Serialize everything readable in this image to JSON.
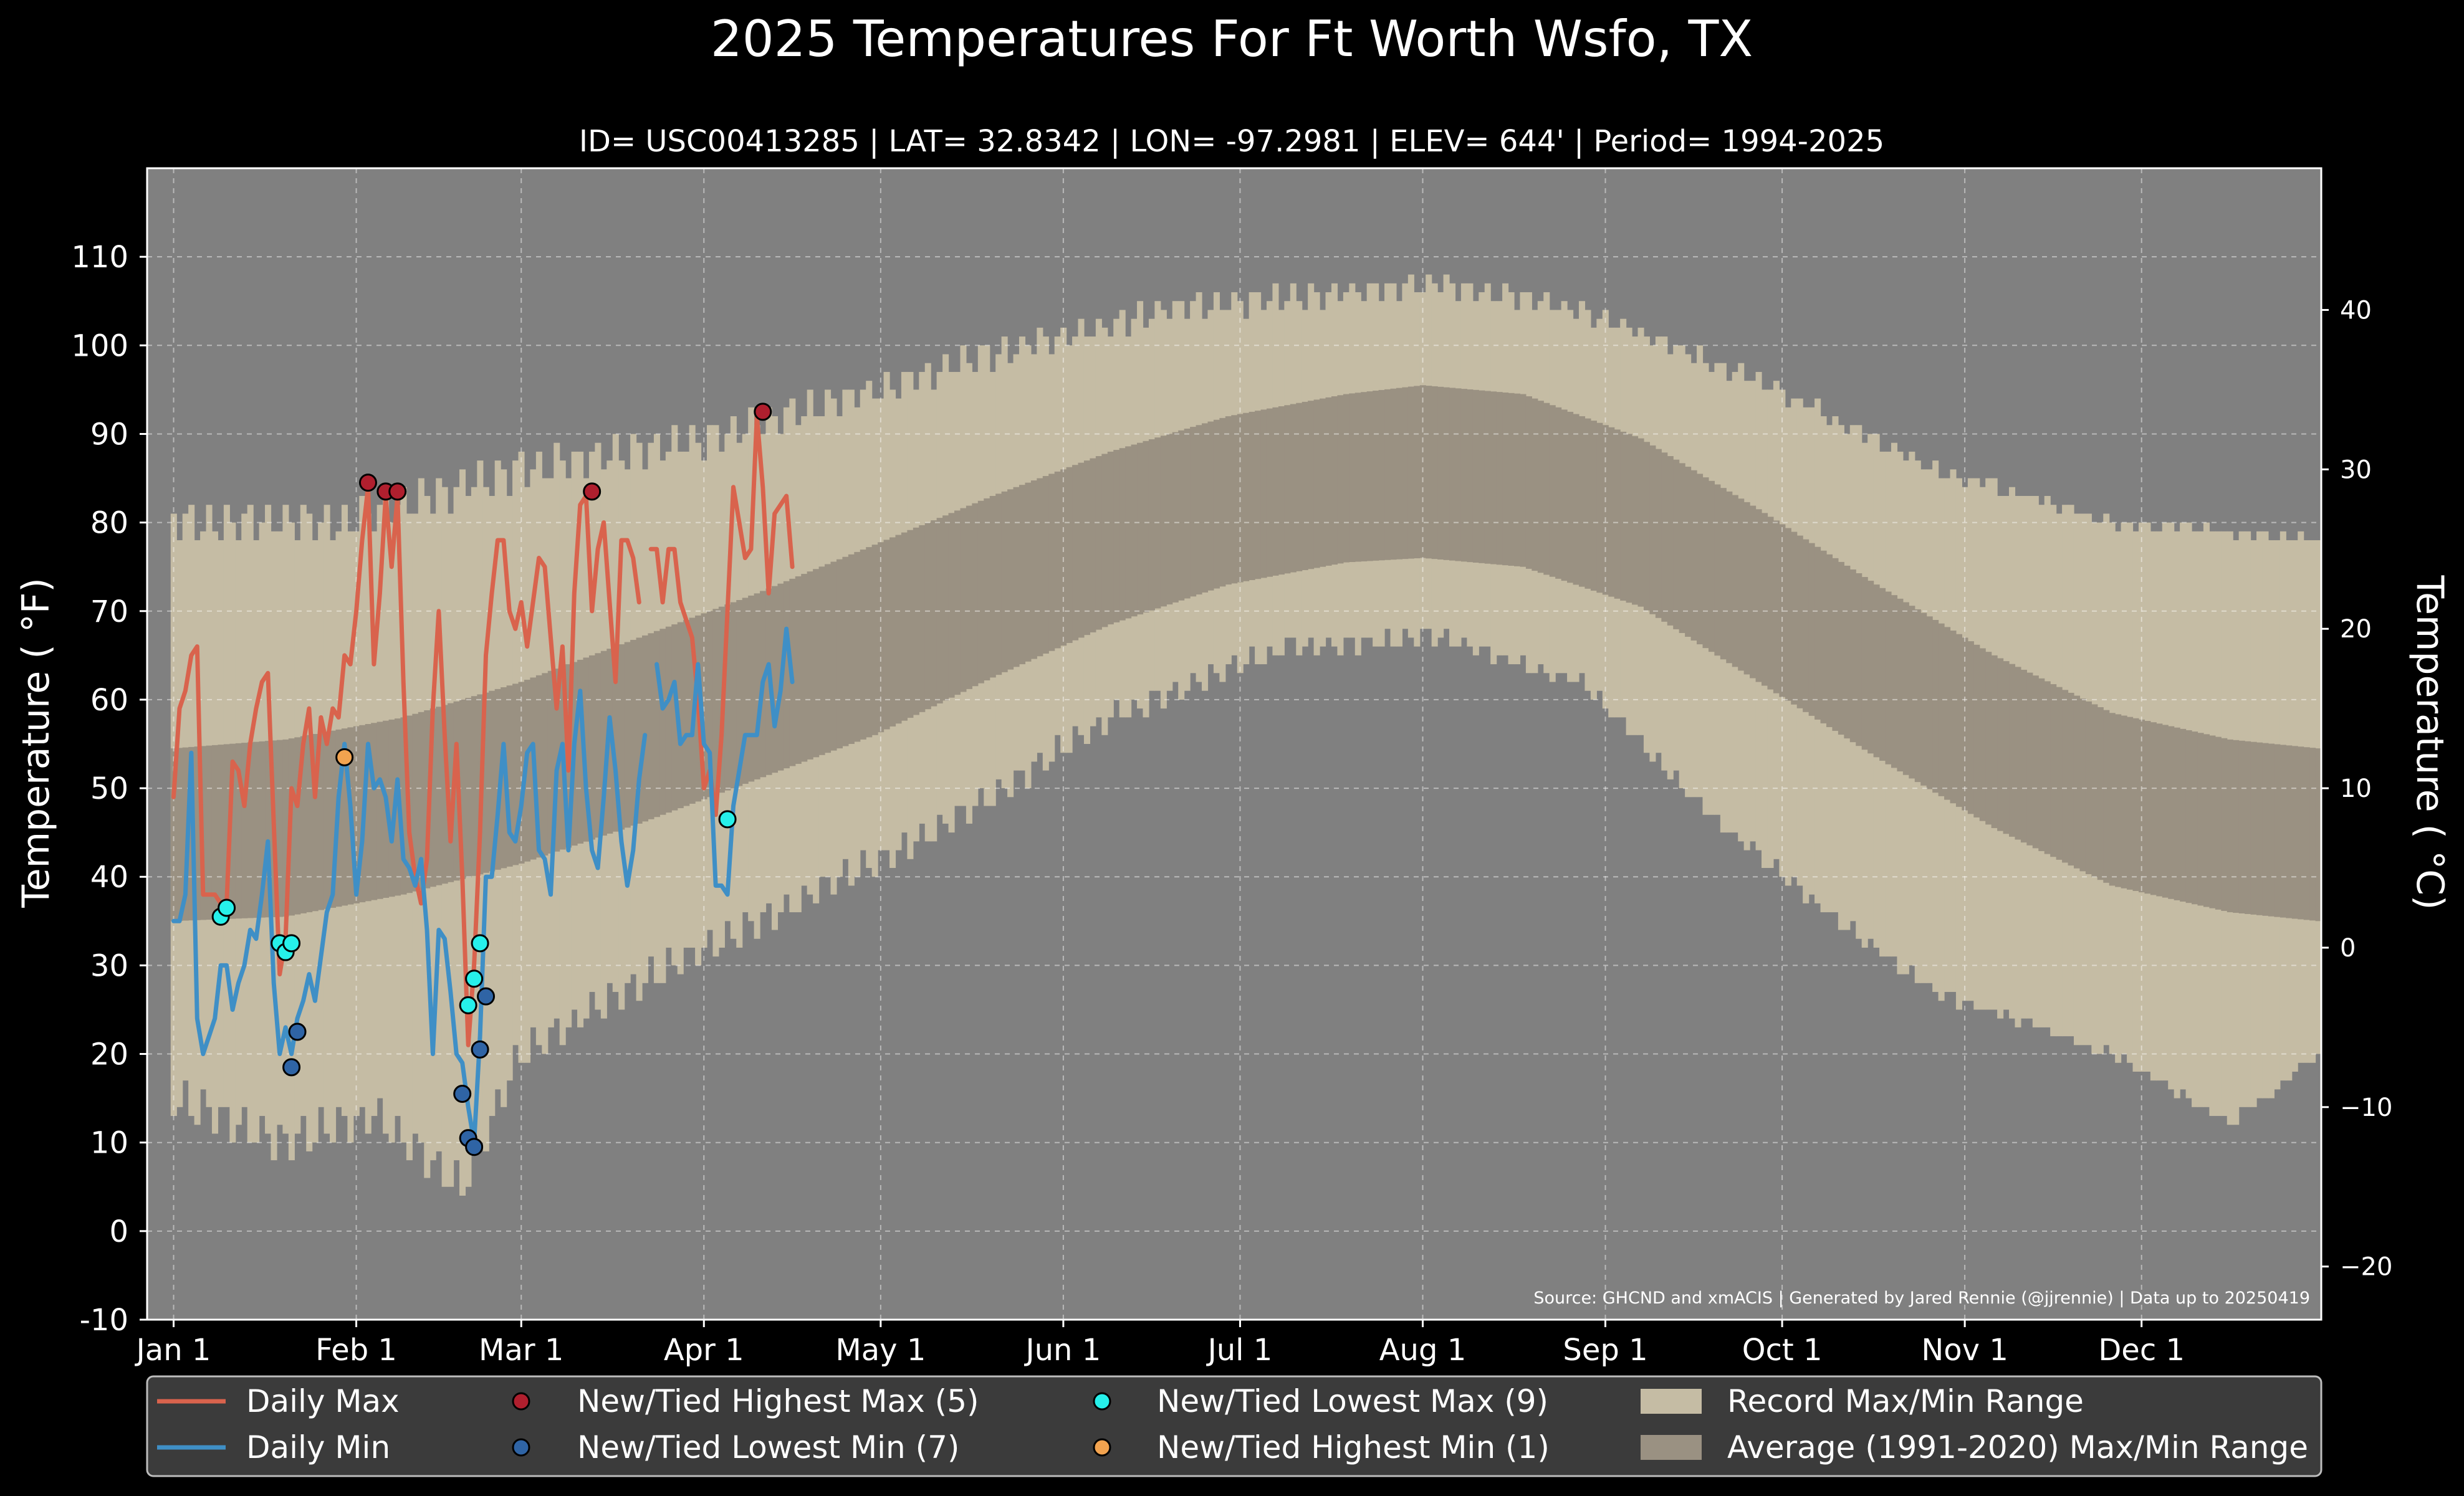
{
  "chart_data": {
    "type": "line",
    "title": "2025 Temperatures For Ft Worth Wsfo, TX",
    "subtitle": "ID= USC00413285 | LAT= 32.8342 | LON= -97.2981 | ELEV= 644' | Period= 1994-2025",
    "ylabel": "Temperature ( °F)",
    "ylabel_right": "Temperature ( °C)",
    "ylim": [
      -10,
      120
    ],
    "ylim_right_celsius": [
      -23.33,
      48.89
    ],
    "y_ticks": [
      "-10",
      "0",
      "10",
      "20",
      "30",
      "40",
      "50",
      "60",
      "70",
      "80",
      "90",
      "100",
      "110"
    ],
    "y_ticks_right": [
      "−20",
      "−10",
      "0",
      "10",
      "20",
      "30",
      "40"
    ],
    "x_ticks": [
      {
        "label": "Jan 1",
        "day": 1
      },
      {
        "label": "Feb 1",
        "day": 32
      },
      {
        "label": "Mar 1",
        "day": 60
      },
      {
        "label": "Apr 1",
        "day": 91
      },
      {
        "label": "May 1",
        "day": 121
      },
      {
        "label": "Jun 1",
        "day": 152
      },
      {
        "label": "Jul 1",
        "day": 182
      },
      {
        "label": "Aug 1",
        "day": 213
      },
      {
        "label": "Sep 1",
        "day": 244
      },
      {
        "label": "Oct 1",
        "day": 274
      },
      {
        "label": "Nov 1",
        "day": 305
      },
      {
        "label": "Dec 1",
        "day": 335
      }
    ],
    "xlim_days": [
      -3.5,
      365.5
    ],
    "grid": true,
    "legend_position": "bottom",
    "source": "Source: GHCND and xmACIS | Generated by Jared Rennie (@jjrennie) | Data up to 20250419",
    "colors": {
      "background": "#000000",
      "plot_bg": "#808080",
      "record_band": "#c5bca4",
      "normal_band": "#9a9182",
      "daily_max": "#d9634d",
      "daily_min": "#3f8fc6",
      "highest_max": "#b01f2e",
      "lowest_min": "#2f64a5",
      "lowest_max": "#26f0ea",
      "highest_min": "#f2a34f"
    },
    "record_max_anchors": {
      "days": [
        1,
        30,
        60,
        90,
        110,
        140,
        170,
        200,
        215,
        240,
        270,
        300,
        330,
        365
      ],
      "values": [
        80,
        80,
        86,
        89,
        93,
        99,
        104,
        106,
        107,
        104,
        96,
        86,
        80,
        78
      ]
    },
    "record_min_anchors": {
      "days": [
        1,
        20,
        35,
        50,
        60,
        80,
        100,
        130,
        160,
        190,
        215,
        240,
        260,
        280,
        300,
        330,
        350,
        365
      ],
      "values": [
        15,
        10,
        13,
        5,
        20,
        28,
        35,
        45,
        58,
        66,
        67,
        62,
        48,
        37,
        27,
        20,
        12,
        20
      ]
    },
    "normal_max_anchors": {
      "days": [
        1,
        20,
        40,
        60,
        80,
        100,
        120,
        140,
        160,
        180,
        200,
        213,
        230,
        250,
        270,
        290,
        310,
        330,
        350,
        365
      ],
      "values": [
        54.5,
        55.5,
        58,
        62,
        67,
        72,
        77.5,
        83,
        88,
        92,
        94.5,
        95.5,
        94.5,
        89.5,
        81.5,
        73,
        65,
        58.5,
        55.5,
        54.5
      ]
    },
    "normal_min_anchors": {
      "days": [
        1,
        20,
        40,
        60,
        80,
        100,
        120,
        140,
        160,
        180,
        200,
        213,
        230,
        250,
        270,
        290,
        310,
        330,
        350,
        365
      ],
      "values": [
        35,
        35.5,
        38,
        41.5,
        46,
        51,
        56,
        62.5,
        68.5,
        73,
        75.5,
        76,
        75,
        70.5,
        62,
        53.5,
        45.5,
        39,
        36,
        35
      ]
    },
    "series": [
      {
        "name": "Daily Max",
        "values": [
          49,
          59,
          61,
          65,
          66,
          38,
          38,
          38,
          37,
          37,
          53,
          52,
          48,
          55,
          59,
          62,
          63,
          46,
          29,
          33,
          50,
          48,
          55,
          59,
          49,
          58,
          55,
          59,
          58,
          65,
          64,
          70,
          78,
          84,
          64,
          72,
          83,
          75,
          83,
          62,
          45,
          40,
          37,
          42,
          59,
          70,
          56,
          44,
          55,
          40,
          21,
          30,
          45,
          65,
          72,
          78,
          78,
          70,
          68,
          71,
          66,
          71,
          76,
          75,
          67,
          59,
          66,
          52,
          72,
          82,
          83,
          70,
          77,
          80,
          71,
          62,
          78,
          78,
          76,
          71,
          null,
          77,
          77,
          71,
          77,
          77,
          71,
          69,
          67,
          60,
          50,
          52,
          47,
          56,
          70,
          84,
          80,
          76,
          77,
          92,
          84,
          72,
          81,
          82,
          83,
          75
        ]
      },
      {
        "name": "Daily Min",
        "values": [
          35,
          35,
          38,
          54,
          24,
          20,
          22,
          24,
          30,
          30,
          25,
          28,
          30,
          34,
          33,
          38,
          44,
          28,
          20,
          23,
          20,
          24,
          26,
          29,
          26,
          31,
          36,
          38,
          49,
          55,
          48,
          38,
          44,
          55,
          50,
          51,
          49,
          44,
          51,
          42,
          41,
          39,
          42,
          34,
          20,
          34,
          33,
          27,
          20,
          19,
          14,
          10,
          22,
          40,
          40,
          47,
          55,
          45,
          44,
          48,
          54,
          55,
          43,
          42,
          38,
          52,
          55,
          43,
          55,
          61,
          50,
          43,
          41,
          49,
          58,
          52,
          44,
          39,
          43,
          51,
          56,
          null,
          64,
          59,
          60,
          62,
          55,
          56,
          56,
          64,
          55,
          54,
          39,
          39,
          38,
          48,
          52,
          56,
          56,
          56,
          62,
          64,
          57,
          61,
          68,
          62
        ]
      }
    ],
    "series_start_day": 1,
    "records": [
      {
        "name": "New/Tied Highest Max (5)",
        "points": [
          {
            "day": 34,
            "value": 84.5
          },
          {
            "day": 37,
            "value": 83.5
          },
          {
            "day": 39,
            "value": 83.5
          },
          {
            "day": 72,
            "value": 83.5
          },
          {
            "day": 101,
            "value": 92.5
          }
        ]
      },
      {
        "name": "New/Tied Lowest Min (7)",
        "points": [
          {
            "day": 21,
            "value": 18.5
          },
          {
            "day": 22,
            "value": 22.5
          },
          {
            "day": 50,
            "value": 15.5
          },
          {
            "day": 51,
            "value": 10.5
          },
          {
            "day": 52,
            "value": 9.5
          },
          {
            "day": 53,
            "value": 20.5
          },
          {
            "day": 54,
            "value": 26.5
          }
        ]
      },
      {
        "name": "New/Tied Lowest Max (9)",
        "points": [
          {
            "day": 9,
            "value": 35.5
          },
          {
            "day": 10,
            "value": 36.5
          },
          {
            "day": 19,
            "value": 32.5
          },
          {
            "day": 20,
            "value": 31.5
          },
          {
            "day": 21,
            "value": 32.5
          },
          {
            "day": 51,
            "value": 25.5
          },
          {
            "day": 52,
            "value": 28.5
          },
          {
            "day": 53,
            "value": 32.5
          },
          {
            "day": 95,
            "value": 46.5
          }
        ]
      },
      {
        "name": "New/Tied Highest Min (1)",
        "points": [
          {
            "day": 30,
            "value": 53.5
          }
        ]
      }
    ],
    "legend": [
      {
        "label": "Daily Max",
        "kind": "line",
        "color": "#d9634d"
      },
      {
        "label": "Daily Min",
        "kind": "line",
        "color": "#3f8fc6"
      },
      {
        "label": "New/Tied Highest Max (5)",
        "kind": "dot",
        "color": "#b01f2e"
      },
      {
        "label": "New/Tied Lowest Min (7)",
        "kind": "dot",
        "color": "#2f64a5"
      },
      {
        "label": "New/Tied Lowest Max (9)",
        "kind": "dot",
        "color": "#26f0ea"
      },
      {
        "label": "New/Tied Highest Min (1)",
        "kind": "dot",
        "color": "#f2a34f"
      },
      {
        "label": "Record Max/Min Range",
        "kind": "patch",
        "color": "#c5bca4"
      },
      {
        "label": "Average (1991-2020) Max/Min Range",
        "kind": "patch",
        "color": "#9a9182"
      }
    ]
  }
}
